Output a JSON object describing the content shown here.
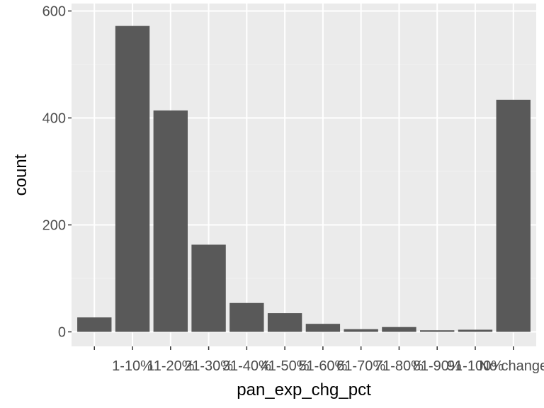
{
  "chart_data": {
    "type": "bar",
    "title": "",
    "xlabel": "pan_exp_chg_pct",
    "ylabel": "count",
    "categories": [
      "",
      "1-10%",
      "11-20%",
      "21-30%",
      "31-40%",
      "41-50%",
      "51-60%",
      "61-70%",
      "71-80%",
      "81-90%",
      "91-100%",
      "No change"
    ],
    "values": [
      27,
      572,
      414,
      163,
      54,
      35,
      15,
      5,
      9,
      3,
      4,
      434
    ],
    "ylim": [
      0,
      600
    ],
    "yticks": [
      0,
      200,
      400,
      600
    ],
    "grid": true,
    "legend": "none",
    "colors": {
      "bar": "#595959",
      "panel": "#ebebeb",
      "grid_major": "#ffffff",
      "grid_minor": "#f2f2f2",
      "tick_text": "#4d4d4d",
      "tick_mark": "#333333"
    }
  }
}
